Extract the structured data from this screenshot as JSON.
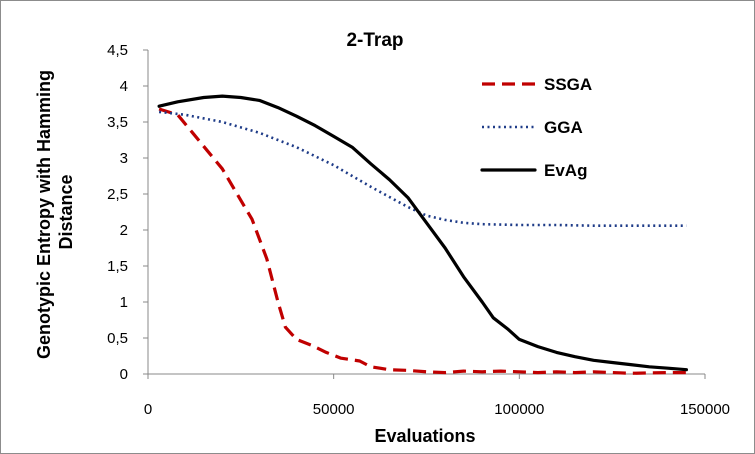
{
  "chart_data": {
    "type": "line",
    "title": "2-Trap",
    "xlabel": "Evaluations",
    "ylabel": "Genotypic Entropy with Hamming Distance",
    "xlim": [
      0,
      150000
    ],
    "ylim": [
      0,
      4.5
    ],
    "x_ticks": [
      "0",
      "50000",
      "100000",
      "150000"
    ],
    "y_ticks": [
      "0",
      "0,5",
      "1",
      "1,5",
      "2",
      "2,5",
      "3",
      "3,5",
      "4",
      "4,5"
    ],
    "grid": false,
    "legend_position": "top-right",
    "series": [
      {
        "name": "SSGA",
        "color": "#c00000",
        "style": "dashed",
        "points": [
          [
            3000,
            3.68
          ],
          [
            8000,
            3.6
          ],
          [
            12000,
            3.35
          ],
          [
            16000,
            3.1
          ],
          [
            20000,
            2.85
          ],
          [
            24000,
            2.5
          ],
          [
            28000,
            2.15
          ],
          [
            32000,
            1.6
          ],
          [
            35000,
            1.0
          ],
          [
            37000,
            0.65
          ],
          [
            40000,
            0.48
          ],
          [
            44000,
            0.4
          ],
          [
            48000,
            0.3
          ],
          [
            52000,
            0.22
          ],
          [
            57000,
            0.18
          ],
          [
            60000,
            0.1
          ],
          [
            65000,
            0.06
          ],
          [
            70000,
            0.05
          ],
          [
            75000,
            0.03
          ],
          [
            80000,
            0.02
          ],
          [
            85000,
            0.04
          ],
          [
            90000,
            0.03
          ],
          [
            95000,
            0.04
          ],
          [
            100000,
            0.03
          ],
          [
            105000,
            0.02
          ],
          [
            110000,
            0.03
          ],
          [
            115000,
            0.02
          ],
          [
            120000,
            0.03
          ],
          [
            130000,
            0.01
          ],
          [
            140000,
            0.02
          ],
          [
            145000,
            0.02
          ]
        ]
      },
      {
        "name": "GGA",
        "color": "#1f3c88",
        "style": "dotted",
        "points": [
          [
            3000,
            3.64
          ],
          [
            10000,
            3.6
          ],
          [
            20000,
            3.5
          ],
          [
            30000,
            3.35
          ],
          [
            40000,
            3.15
          ],
          [
            50000,
            2.9
          ],
          [
            60000,
            2.6
          ],
          [
            70000,
            2.32
          ],
          [
            75000,
            2.2
          ],
          [
            80000,
            2.14
          ],
          [
            85000,
            2.1
          ],
          [
            90000,
            2.08
          ],
          [
            100000,
            2.07
          ],
          [
            110000,
            2.07
          ],
          [
            120000,
            2.06
          ],
          [
            130000,
            2.06
          ],
          [
            145000,
            2.06
          ]
        ]
      },
      {
        "name": "EvAg",
        "color": "#000000",
        "style": "solid",
        "points": [
          [
            3000,
            3.72
          ],
          [
            8000,
            3.78
          ],
          [
            15000,
            3.84
          ],
          [
            20000,
            3.86
          ],
          [
            25000,
            3.84
          ],
          [
            30000,
            3.8
          ],
          [
            35000,
            3.7
          ],
          [
            40000,
            3.58
          ],
          [
            45000,
            3.45
          ],
          [
            50000,
            3.3
          ],
          [
            55000,
            3.15
          ],
          [
            60000,
            2.92
          ],
          [
            65000,
            2.7
          ],
          [
            70000,
            2.45
          ],
          [
            75000,
            2.1
          ],
          [
            80000,
            1.75
          ],
          [
            85000,
            1.35
          ],
          [
            90000,
            1.0
          ],
          [
            93000,
            0.78
          ],
          [
            97000,
            0.62
          ],
          [
            100000,
            0.48
          ],
          [
            105000,
            0.38
          ],
          [
            110000,
            0.3
          ],
          [
            115000,
            0.24
          ],
          [
            120000,
            0.19
          ],
          [
            125000,
            0.16
          ],
          [
            130000,
            0.13
          ],
          [
            135000,
            0.1
          ],
          [
            140000,
            0.08
          ],
          [
            145000,
            0.06
          ]
        ]
      }
    ]
  }
}
